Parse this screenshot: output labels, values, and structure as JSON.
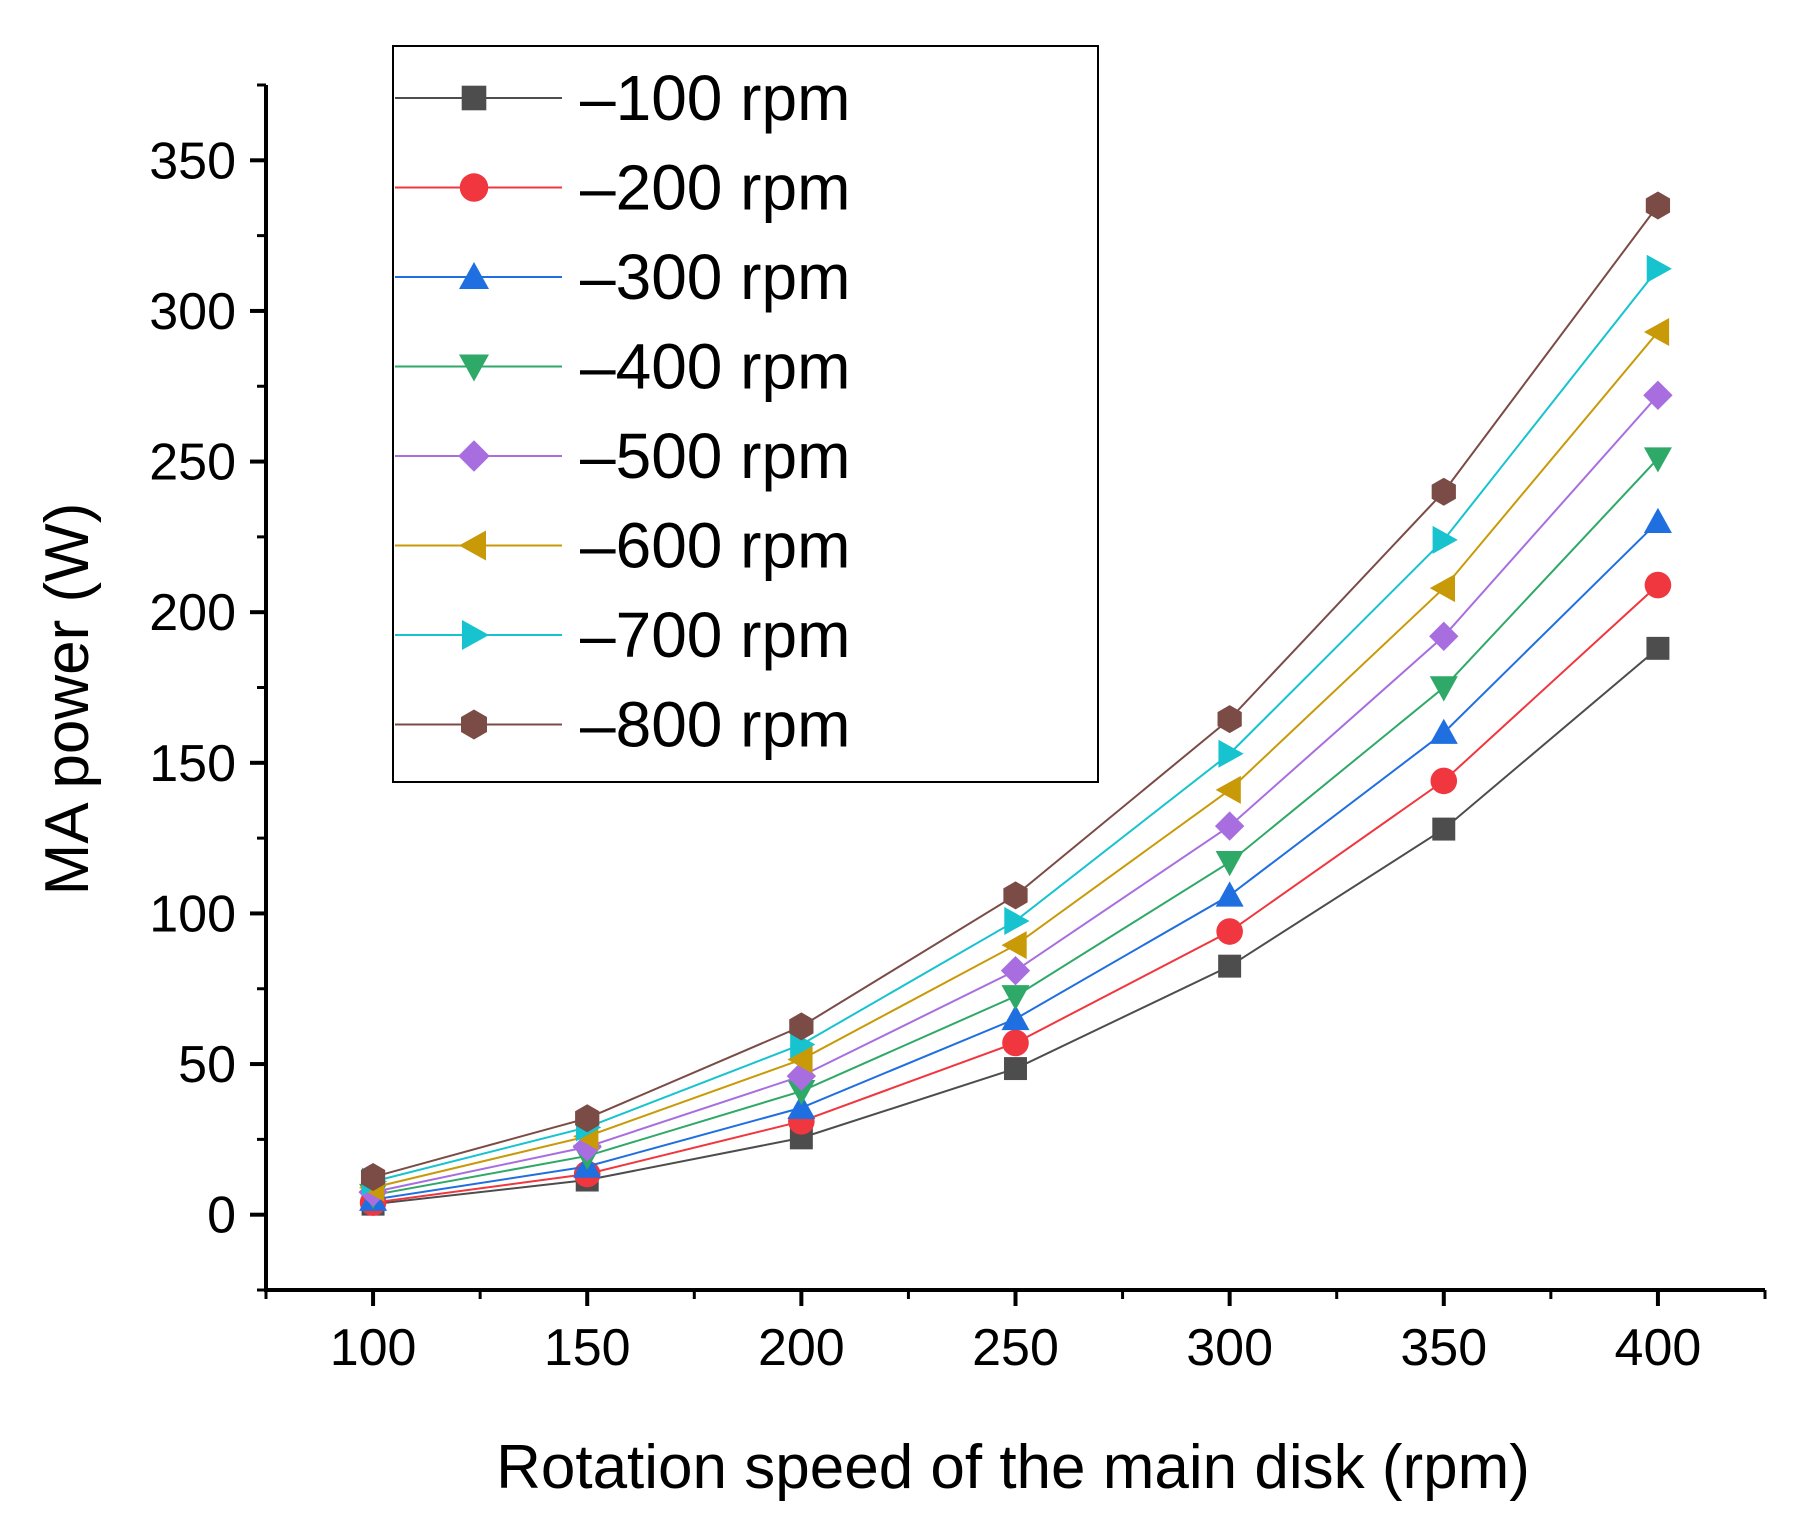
{
  "chart_data": {
    "type": "line",
    "title": "",
    "xlabel": "Rotation speed of the main disk (rpm)",
    "ylabel": "MA power (W)",
    "xlim": [
      75,
      425
    ],
    "ylim": [
      -25,
      375
    ],
    "xticks": [
      "100",
      "150",
      "200",
      "250",
      "300",
      "350",
      "400"
    ],
    "yticks": [
      "0",
      "50",
      "100",
      "150",
      "200",
      "250",
      "300",
      "350"
    ],
    "x": [
      100,
      150,
      200,
      250,
      300,
      350,
      400
    ],
    "legend_position": "top-left",
    "series": [
      {
        "name": "–100 rpm",
        "color": "#4d4d4d",
        "marker": "square",
        "values": [
          3.5,
          11.5,
          25.5,
          48.5,
          82.5,
          128,
          188
        ]
      },
      {
        "name": "–200 rpm",
        "color": "#f0363e",
        "marker": "circle",
        "values": [
          4,
          13.5,
          31,
          57,
          94,
          144,
          209
        ]
      },
      {
        "name": "–300 rpm",
        "color": "#1f6fe0",
        "marker": "triangle-up",
        "values": [
          5,
          16,
          35.5,
          65,
          106,
          160,
          230
        ]
      },
      {
        "name": "–400 rpm",
        "color": "#2fa968",
        "marker": "triangle-down",
        "values": [
          6.5,
          19.5,
          41,
          72.5,
          117,
          175,
          251
        ]
      },
      {
        "name": "–500 rpm",
        "color": "#a86ee0",
        "marker": "diamond",
        "values": [
          7.5,
          22.5,
          46,
          81,
          129,
          192,
          272
        ]
      },
      {
        "name": "–600 rpm",
        "color": "#c99a08",
        "marker": "triangle-left",
        "values": [
          9,
          26,
          51.5,
          89.5,
          141,
          208,
          293
        ]
      },
      {
        "name": "–700 rpm",
        "color": "#16c3cf",
        "marker": "triangle-right",
        "values": [
          11,
          29,
          56.5,
          97.5,
          153,
          224,
          314
        ]
      },
      {
        "name": "–800 rpm",
        "color": "#7b4b46",
        "marker": "hexagon",
        "values": [
          12.5,
          32,
          62.5,
          106,
          164.5,
          240,
          335
        ]
      }
    ]
  }
}
